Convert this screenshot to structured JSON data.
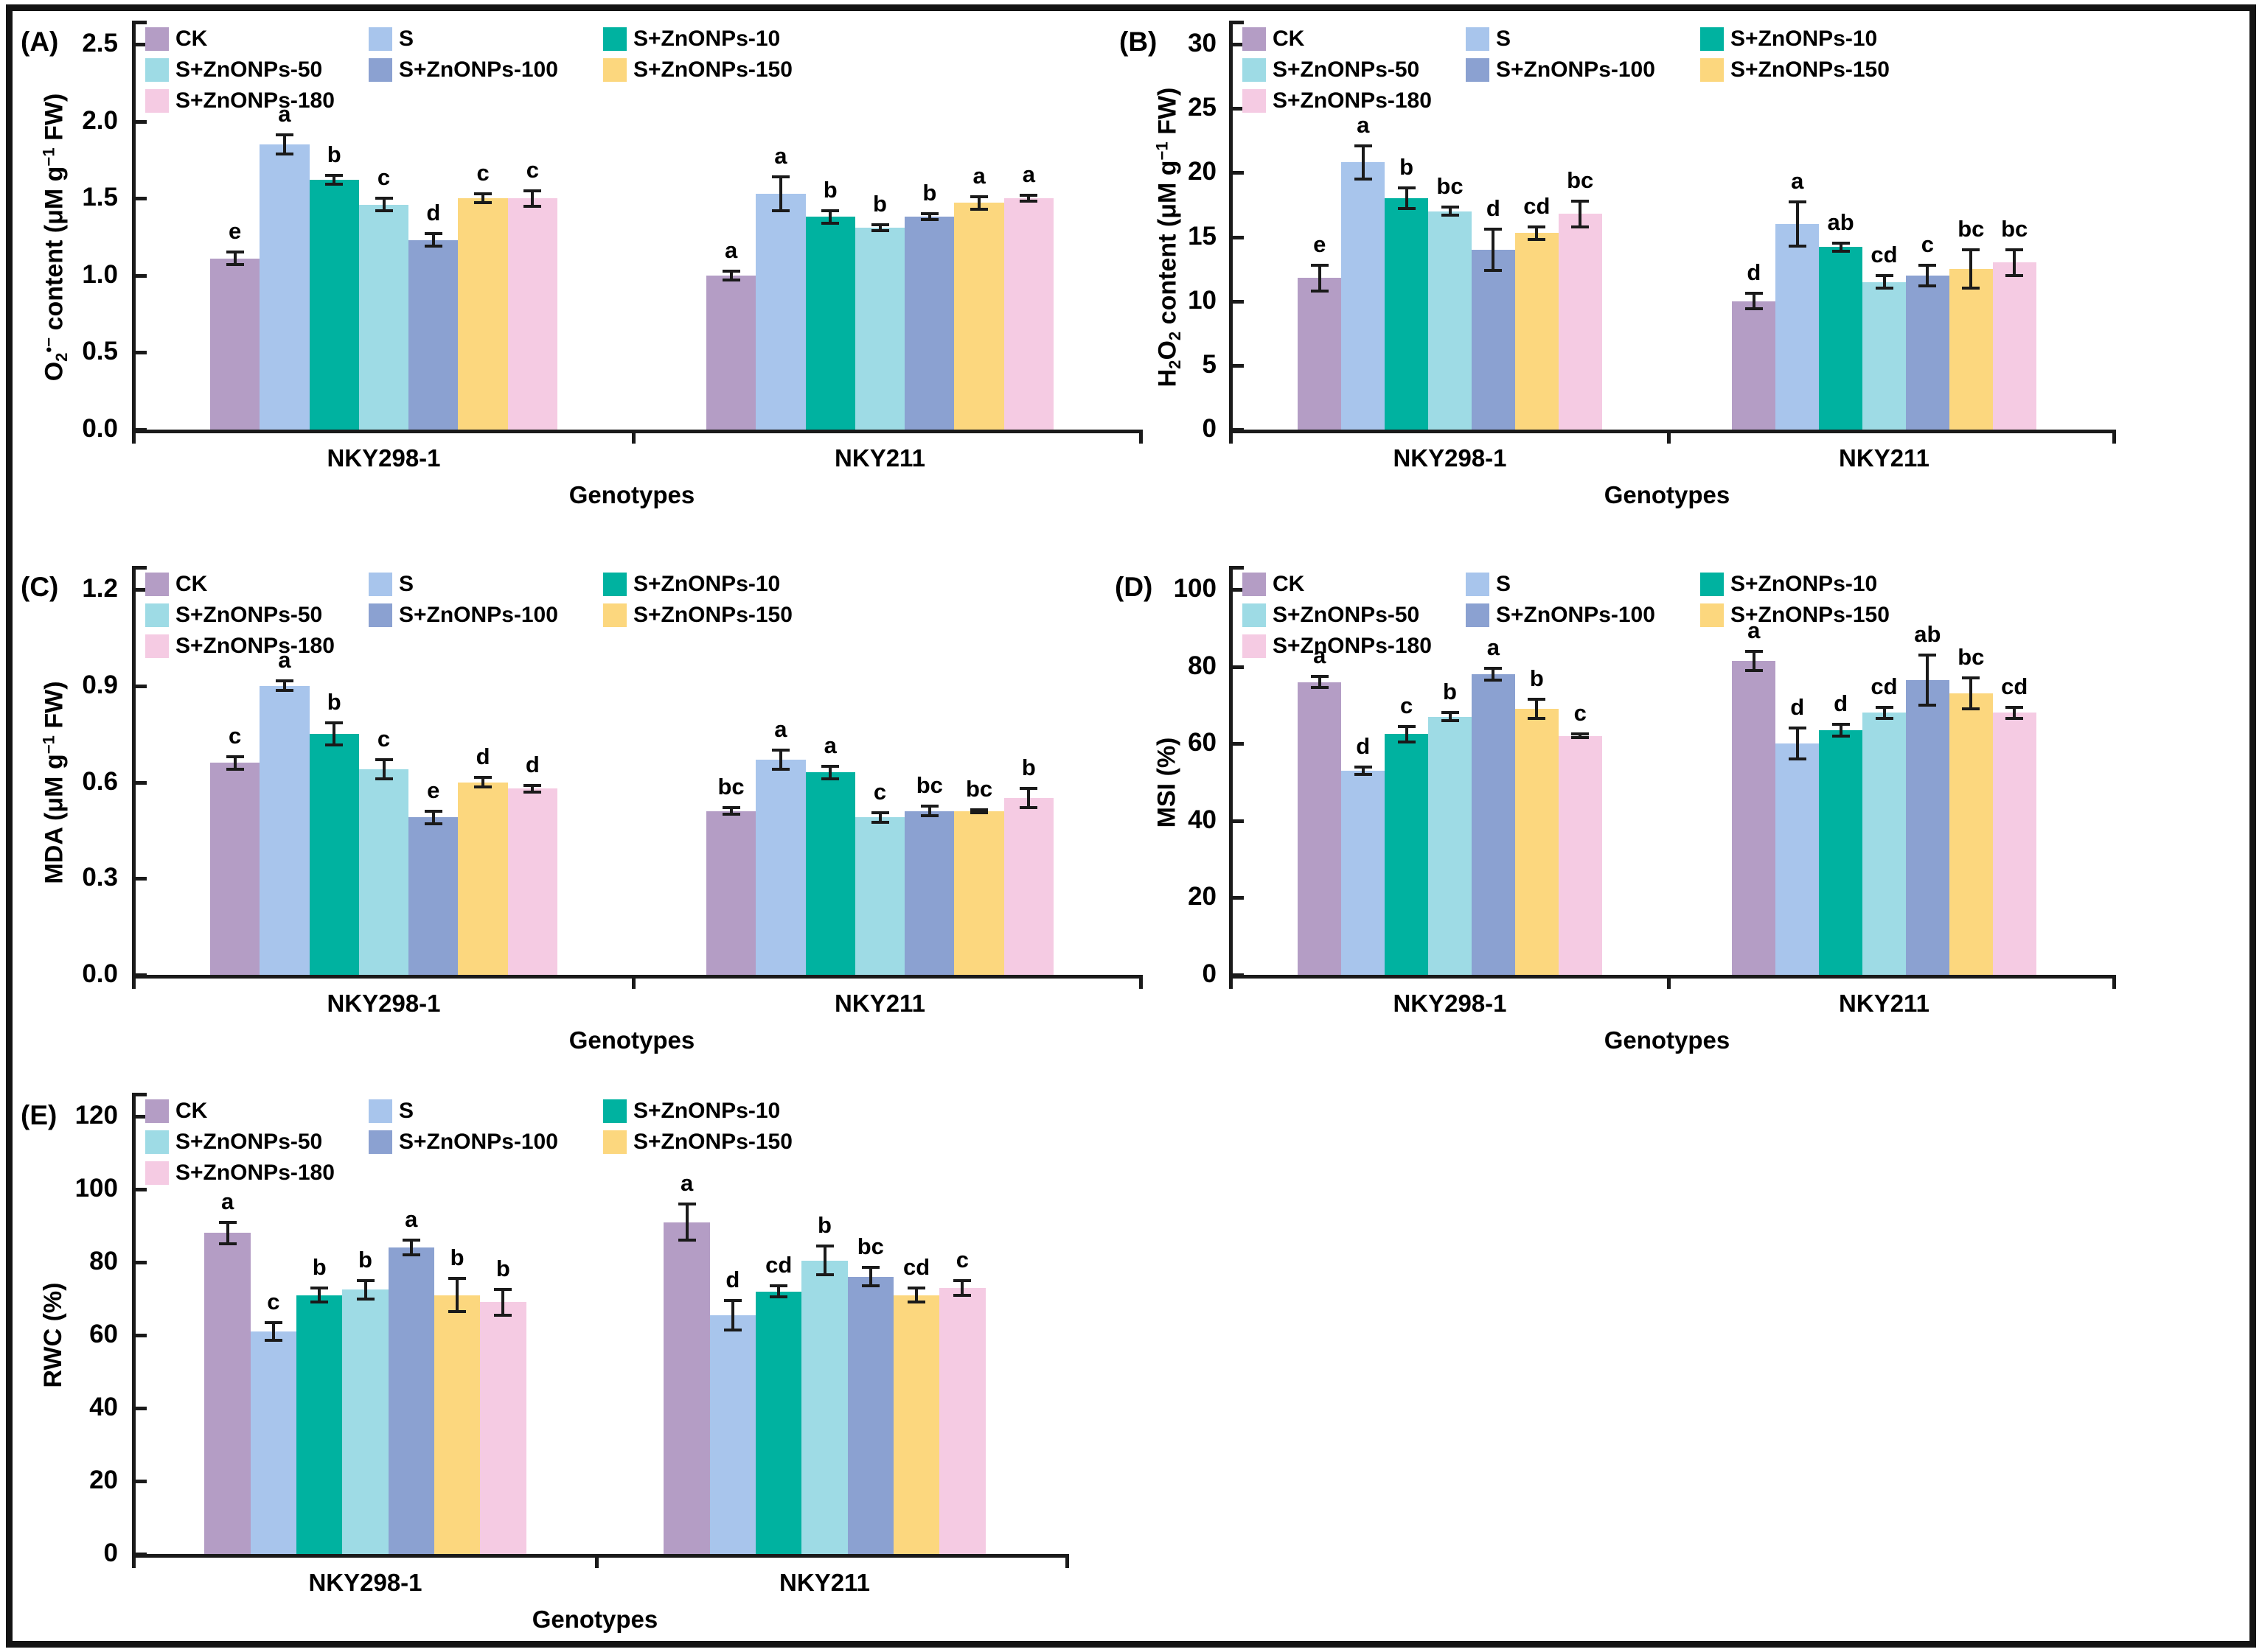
{
  "figure": {
    "xlabel": "Genotypes",
    "groups": [
      "NKY298-1",
      "NKY211"
    ],
    "treatments": [
      {
        "label": "CK",
        "color": "#b49dc5"
      },
      {
        "label": "S",
        "color": "#a8c5ec"
      },
      {
        "label": "S+ZnONPs-10",
        "color": "#00b2a0"
      },
      {
        "label": "S+ZnONPs-50",
        "color": "#9edbe5"
      },
      {
        "label": "S+ZnONPs-100",
        "color": "#8ba1d1"
      },
      {
        "label": "S+ZnONPs-150",
        "color": "#fcd77e"
      },
      {
        "label": "S+ZnONPs-180",
        "color": "#f5cbe3"
      }
    ],
    "axis_color": "#1a1a1a"
  },
  "chart_data": [
    {
      "key": "A",
      "panel_label": "(A)",
      "type": "bar",
      "ylabel": "O2•− content (μM g−1 FW)",
      "ylabel_segments": [
        {
          "t": "O"
        },
        {
          "t": "2",
          "sub": true
        },
        {
          "t": "•−",
          "sup": true
        },
        {
          "t": " content (μM g"
        },
        {
          "t": "−1",
          "sup": true
        },
        {
          "t": " FW)"
        }
      ],
      "xlabel": "Genotypes",
      "ylim": [
        0,
        2.5
      ],
      "yticks": [
        "0.0",
        "0.5",
        "1.0",
        "1.5",
        "2.0",
        "2.5"
      ],
      "categories": [
        "NKY298-1",
        "NKY211"
      ],
      "series": [
        {
          "name": "CK",
          "values": [
            1.11,
            1.0
          ],
          "errors": [
            0.04,
            0.03
          ],
          "letters": [
            "e",
            "a"
          ]
        },
        {
          "name": "S",
          "values": [
            1.85,
            1.53
          ],
          "errors": [
            0.06,
            0.11
          ],
          "letters": [
            "a",
            "a"
          ]
        },
        {
          "name": "S+ZnONPs-10",
          "values": [
            1.62,
            1.38
          ],
          "errors": [
            0.03,
            0.04
          ],
          "letters": [
            "b",
            "b"
          ]
        },
        {
          "name": "S+ZnONPs-50",
          "values": [
            1.46,
            1.31
          ],
          "errors": [
            0.04,
            0.02
          ],
          "letters": [
            "c",
            "b"
          ]
        },
        {
          "name": "S+ZnONPs-100",
          "values": [
            1.23,
            1.38
          ],
          "errors": [
            0.04,
            0.02
          ],
          "letters": [
            "d",
            "b"
          ]
        },
        {
          "name": "S+ZnONPs-150",
          "values": [
            1.5,
            1.47
          ],
          "errors": [
            0.03,
            0.04
          ],
          "letters": [
            "c",
            "a"
          ]
        },
        {
          "name": "S+ZnONPs-180",
          "values": [
            1.5,
            1.5
          ],
          "errors": [
            0.05,
            0.02
          ],
          "letters": [
            "c",
            "a"
          ]
        }
      ]
    },
    {
      "key": "B",
      "panel_label": "(B)",
      "type": "bar",
      "ylabel": "H2O2 content (μM g−1 FW)",
      "ylabel_segments": [
        {
          "t": "H"
        },
        {
          "t": "2",
          "sub": true
        },
        {
          "t": "O"
        },
        {
          "t": "2",
          "sub": true
        },
        {
          "t": " content (μM g"
        },
        {
          "t": "−1",
          "sup": true
        },
        {
          "t": " FW)"
        }
      ],
      "xlabel": "Genotypes",
      "ylim": [
        0,
        30
      ],
      "yticks": [
        "0",
        "5",
        "10",
        "15",
        "20",
        "25",
        "30"
      ],
      "categories": [
        "NKY298-1",
        "NKY211"
      ],
      "series": [
        {
          "name": "CK",
          "values": [
            11.8,
            10.0
          ],
          "errors": [
            1.0,
            0.6
          ],
          "letters": [
            "e",
            "d"
          ]
        },
        {
          "name": "S",
          "values": [
            20.8,
            16.0
          ],
          "errors": [
            1.3,
            1.7
          ],
          "letters": [
            "a",
            "a"
          ]
        },
        {
          "name": "S+ZnONPs-10",
          "values": [
            18.0,
            14.2
          ],
          "errors": [
            0.8,
            0.3
          ],
          "letters": [
            "b",
            "ab"
          ]
        },
        {
          "name": "S+ZnONPs-50",
          "values": [
            17.0,
            11.5
          ],
          "errors": [
            0.3,
            0.5
          ],
          "letters": [
            "bc",
            "cd"
          ]
        },
        {
          "name": "S+ZnONPs-100",
          "values": [
            14.0,
            12.0
          ],
          "errors": [
            1.6,
            0.8
          ],
          "letters": [
            "d",
            "c"
          ]
        },
        {
          "name": "S+ZnONPs-150",
          "values": [
            15.3,
            12.5
          ],
          "errors": [
            0.5,
            1.5
          ],
          "letters": [
            "cd",
            "bc"
          ]
        },
        {
          "name": "S+ZnONPs-180",
          "values": [
            16.8,
            13.0
          ],
          "errors": [
            1.0,
            1.0
          ],
          "letters": [
            "bc",
            "bc"
          ]
        }
      ]
    },
    {
      "key": "C",
      "panel_label": "(C)",
      "type": "bar",
      "ylabel": "MDA (μM g−1 FW)",
      "ylabel_segments": [
        {
          "t": "MDA (μM g"
        },
        {
          "t": "−1",
          "sup": true
        },
        {
          "t": " FW)"
        }
      ],
      "xlabel": "Genotypes",
      "ylim": [
        0,
        1.2
      ],
      "yticks": [
        "0.0",
        "0.3",
        "0.6",
        "0.9",
        "1.2"
      ],
      "categories": [
        "NKY298-1",
        "NKY211"
      ],
      "series": [
        {
          "name": "CK",
          "values": [
            0.66,
            0.51
          ],
          "errors": [
            0.02,
            0.01
          ],
          "letters": [
            "c",
            "bc"
          ]
        },
        {
          "name": "S",
          "values": [
            0.9,
            0.67
          ],
          "errors": [
            0.015,
            0.03
          ],
          "letters": [
            "a",
            "a"
          ]
        },
        {
          "name": "S+ZnONPs-10",
          "values": [
            0.75,
            0.63
          ],
          "errors": [
            0.035,
            0.02
          ],
          "letters": [
            "b",
            "a"
          ]
        },
        {
          "name": "S+ZnONPs-50",
          "values": [
            0.64,
            0.49
          ],
          "errors": [
            0.03,
            0.015
          ],
          "letters": [
            "c",
            "c"
          ]
        },
        {
          "name": "S+ZnONPs-100",
          "values": [
            0.49,
            0.51
          ],
          "errors": [
            0.02,
            0.015
          ],
          "letters": [
            "e",
            "bc"
          ]
        },
        {
          "name": "S+ZnONPs-150",
          "values": [
            0.6,
            0.51
          ],
          "errors": [
            0.015,
            0.005
          ],
          "letters": [
            "d",
            "bc"
          ]
        },
        {
          "name": "S+ZnONPs-180",
          "values": [
            0.58,
            0.55
          ],
          "errors": [
            0.01,
            0.03
          ],
          "letters": [
            "d",
            "b"
          ]
        }
      ]
    },
    {
      "key": "D",
      "panel_label": "(D)",
      "type": "bar",
      "ylabel": "MSI (%)",
      "ylabel_segments": [
        {
          "t": "MSI (%)"
        }
      ],
      "xlabel": "Genotypes",
      "ylim": [
        0,
        100
      ],
      "yticks": [
        "0",
        "20",
        "40",
        "60",
        "80",
        "100"
      ],
      "categories": [
        "NKY298-1",
        "NKY211"
      ],
      "series": [
        {
          "name": "CK",
          "values": [
            76.0,
            81.5
          ],
          "errors": [
            1.5,
            2.5
          ],
          "letters": [
            "a",
            "a"
          ]
        },
        {
          "name": "S",
          "values": [
            53.0,
            60.0
          ],
          "errors": [
            1.0,
            4.0
          ],
          "letters": [
            "d",
            "d"
          ]
        },
        {
          "name": "S+ZnONPs-10",
          "values": [
            62.5,
            63.5
          ],
          "errors": [
            2.0,
            1.5
          ],
          "letters": [
            "c",
            "d"
          ]
        },
        {
          "name": "S+ZnONPs-50",
          "values": [
            67.0,
            68.0
          ],
          "errors": [
            1.0,
            1.5
          ],
          "letters": [
            "b",
            "cd"
          ]
        },
        {
          "name": "S+ZnONPs-100",
          "values": [
            78.0,
            76.5
          ],
          "errors": [
            1.5,
            6.5
          ],
          "letters": [
            "a",
            "ab"
          ]
        },
        {
          "name": "S+ZnONPs-150",
          "values": [
            69.0,
            73.0
          ],
          "errors": [
            2.5,
            4.0
          ],
          "letters": [
            "b",
            "bc"
          ]
        },
        {
          "name": "S+ZnONPs-180",
          "values": [
            62.0,
            68.0
          ],
          "errors": [
            0.5,
            1.5
          ],
          "letters": [
            "c",
            "cd"
          ]
        }
      ]
    },
    {
      "key": "E",
      "panel_label": "(E)",
      "type": "bar",
      "ylabel": "RWC (%)",
      "ylabel_segments": [
        {
          "t": "RWC (%)"
        }
      ],
      "xlabel": "Genotypes",
      "ylim": [
        0,
        120
      ],
      "yticks": [
        "0",
        "20",
        "40",
        "60",
        "80",
        "100",
        "120"
      ],
      "categories": [
        "NKY298-1",
        "NKY211"
      ],
      "series": [
        {
          "name": "CK",
          "values": [
            88.0,
            91.0
          ],
          "errors": [
            3.0,
            5.0
          ],
          "letters": [
            "a",
            "a"
          ]
        },
        {
          "name": "S",
          "values": [
            61.0,
            65.5
          ],
          "errors": [
            2.5,
            4.0
          ],
          "letters": [
            "c",
            "d"
          ]
        },
        {
          "name": "S+ZnONPs-10",
          "values": [
            71.0,
            72.0
          ],
          "errors": [
            2.0,
            1.5
          ],
          "letters": [
            "b",
            "cd"
          ]
        },
        {
          "name": "S+ZnONPs-50",
          "values": [
            72.5,
            80.5
          ],
          "errors": [
            2.5,
            4.0
          ],
          "letters": [
            "b",
            "b"
          ]
        },
        {
          "name": "S+ZnONPs-100",
          "values": [
            84.0,
            76.0
          ],
          "errors": [
            2.0,
            2.5
          ],
          "letters": [
            "a",
            "bc"
          ]
        },
        {
          "name": "S+ZnONPs-150",
          "values": [
            71.0,
            71.0
          ],
          "errors": [
            4.5,
            2.0
          ],
          "letters": [
            "b",
            "cd"
          ]
        },
        {
          "name": "S+ZnONPs-180",
          "values": [
            69.0,
            73.0
          ],
          "errors": [
            3.5,
            2.0
          ],
          "letters": [
            "b",
            "c"
          ]
        }
      ]
    }
  ]
}
